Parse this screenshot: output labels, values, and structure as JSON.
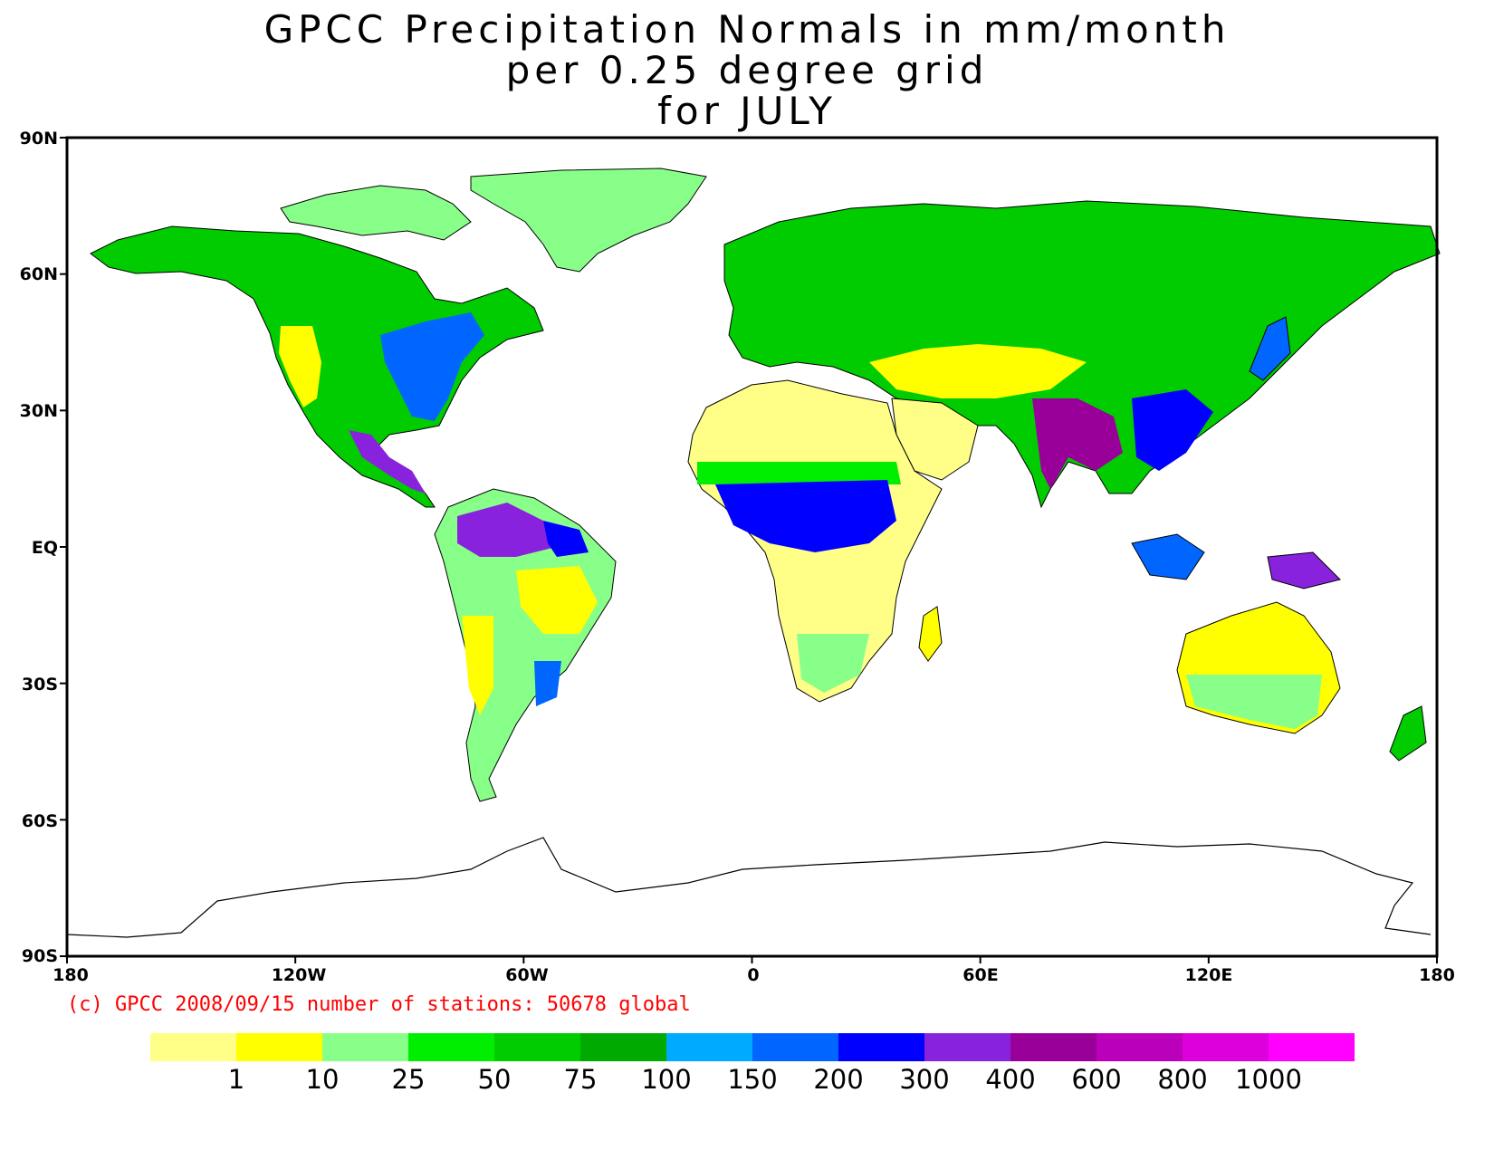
{
  "title": {
    "line1": "GPCC Precipitation Normals in mm/month",
    "line2": "per 0.25 degree grid",
    "line3": "for JULY"
  },
  "axes": {
    "lat_labels": [
      "90N",
      "60N",
      "30N",
      "EQ",
      "30S",
      "60S",
      "90S"
    ],
    "lon_labels": [
      "180",
      "120W",
      "60W",
      "0",
      "60E",
      "120E",
      "180"
    ],
    "lat_range": [
      -90,
      90
    ],
    "lon_range": [
      -180,
      180
    ]
  },
  "copyright": "(c) GPCC 2008/09/15 number of stations: 50678 global",
  "legend": {
    "colors": [
      "#ffff88",
      "#ffff00",
      "#88ff88",
      "#00ee00",
      "#00cc00",
      "#00aa00",
      "#00aaff",
      "#0066ff",
      "#0000ff",
      "#8822dd",
      "#990099",
      "#bb00bb",
      "#dd00dd",
      "#ff00ff"
    ],
    "labels": [
      "1",
      "10",
      "25",
      "50",
      "75",
      "100",
      "150",
      "200",
      "300",
      "400",
      "600",
      "800",
      "1000"
    ]
  }
}
